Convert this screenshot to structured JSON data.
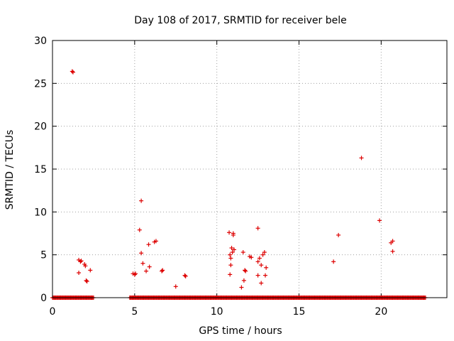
{
  "chart_data": {
    "type": "scatter",
    "title": "Day 108 of 2017, SRMTID for receiver bele",
    "xlabel": "GPS time / hours",
    "ylabel": "SRMTID / TECUs",
    "xlim": [
      0,
      24
    ],
    "ylim": [
      0,
      30
    ],
    "x_ticks": [
      0,
      5,
      10,
      15,
      20
    ],
    "y_ticks": [
      0,
      5,
      10,
      15,
      20,
      25,
      30
    ],
    "x_tick_labels": [
      "0",
      "5",
      "10",
      "15",
      "20"
    ],
    "y_tick_labels": [
      "0",
      "5",
      "10",
      "15",
      "20",
      "25",
      "30"
    ],
    "grid": true,
    "marker": "plus",
    "color": "#dd0000",
    "series": [
      {
        "points": [
          [
            1.2,
            26.4
          ],
          [
            1.25,
            26.3
          ],
          [
            1.6,
            2.9
          ],
          [
            1.6,
            4.4
          ],
          [
            1.7,
            4.2
          ],
          [
            1.75,
            4.3
          ],
          [
            1.95,
            3.9
          ],
          [
            2.0,
            3.7
          ],
          [
            2.05,
            2.0
          ],
          [
            2.1,
            1.9
          ],
          [
            2.3,
            3.2
          ],
          [
            4.9,
            2.8
          ],
          [
            5.0,
            2.7
          ],
          [
            5.05,
            2.8
          ],
          [
            5.3,
            7.9
          ],
          [
            5.4,
            11.3
          ],
          [
            5.4,
            5.2
          ],
          [
            5.5,
            4.0
          ],
          [
            5.7,
            3.1
          ],
          [
            5.85,
            6.2
          ],
          [
            5.9,
            3.6
          ],
          [
            6.2,
            6.5
          ],
          [
            6.3,
            6.6
          ],
          [
            6.65,
            3.1
          ],
          [
            6.7,
            3.2
          ],
          [
            7.5,
            1.3
          ],
          [
            8.05,
            2.6
          ],
          [
            8.1,
            2.5
          ],
          [
            10.75,
            7.6
          ],
          [
            10.8,
            2.7
          ],
          [
            10.8,
            5.0
          ],
          [
            10.85,
            3.8
          ],
          [
            10.85,
            4.6
          ],
          [
            10.9,
            5.8
          ],
          [
            10.95,
            5.3
          ],
          [
            11.0,
            7.3
          ],
          [
            11.0,
            7.5
          ],
          [
            11.05,
            5.6
          ],
          [
            11.5,
            1.2
          ],
          [
            11.6,
            5.3
          ],
          [
            11.65,
            2.0
          ],
          [
            11.7,
            3.2
          ],
          [
            11.75,
            3.1
          ],
          [
            12.0,
            4.8
          ],
          [
            12.1,
            4.7
          ],
          [
            12.5,
            8.1
          ],
          [
            12.5,
            2.6
          ],
          [
            12.5,
            4.2
          ],
          [
            12.6,
            4.6
          ],
          [
            12.7,
            1.7
          ],
          [
            12.7,
            3.8
          ],
          [
            12.8,
            5.0
          ],
          [
            12.9,
            5.3
          ],
          [
            12.95,
            2.6
          ],
          [
            13.0,
            3.5
          ],
          [
            17.1,
            4.2
          ],
          [
            17.4,
            7.3
          ],
          [
            18.8,
            16.3
          ],
          [
            19.9,
            9.0
          ],
          [
            20.6,
            6.4
          ],
          [
            20.7,
            6.6
          ],
          [
            20.7,
            5.4
          ]
        ],
        "zero_baseline_ranges": [
          [
            0.0,
            2.5
          ],
          [
            4.7,
            22.7
          ]
        ]
      }
    ]
  }
}
